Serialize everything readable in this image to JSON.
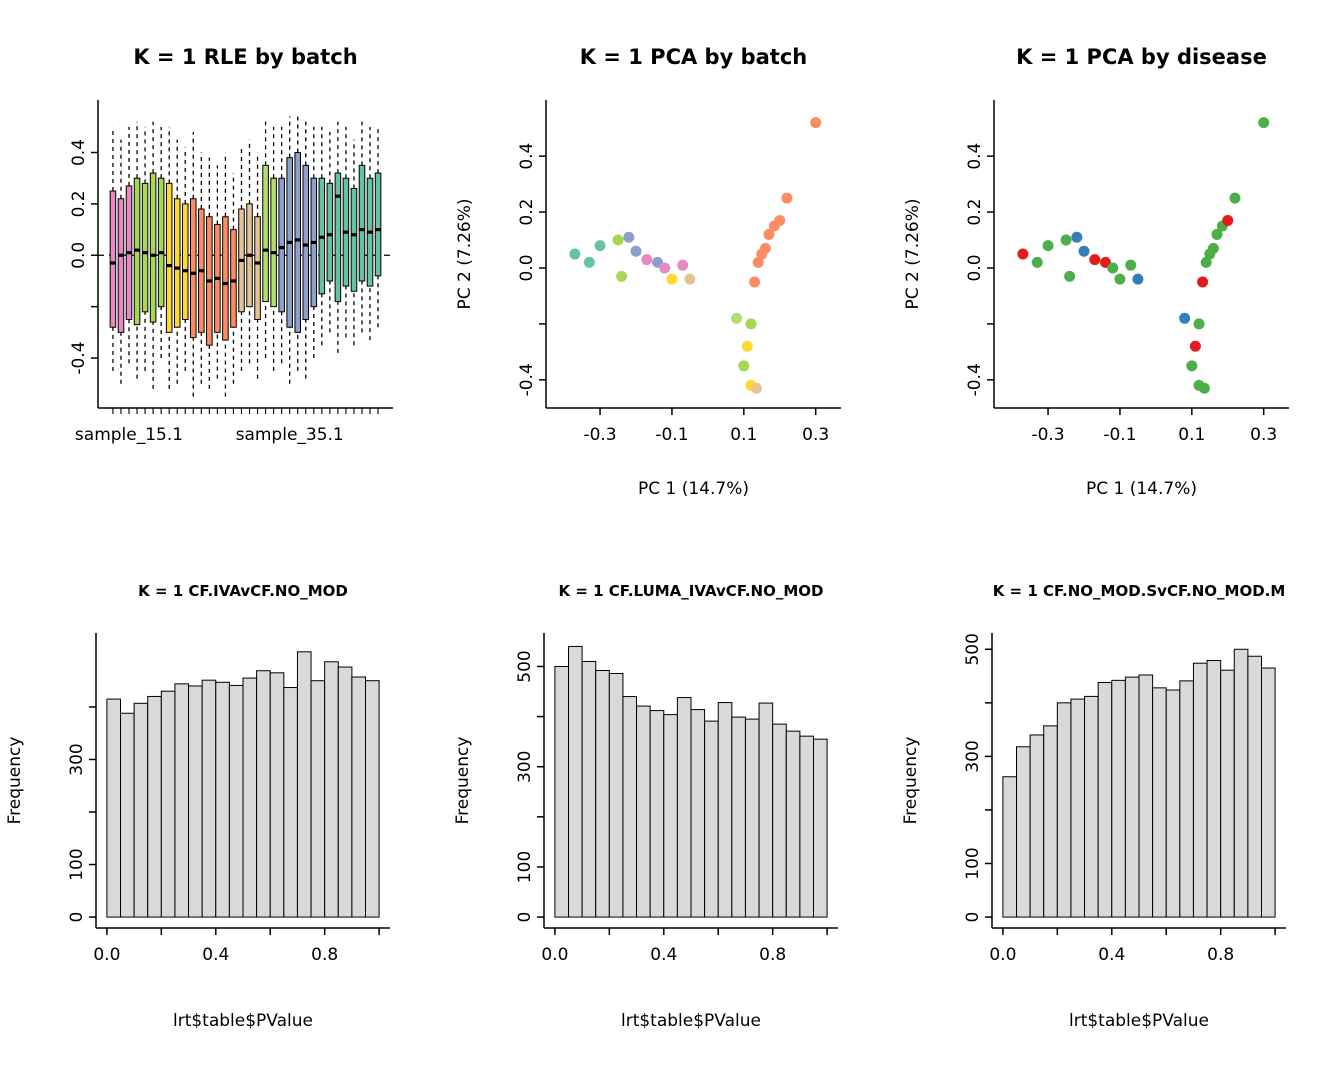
{
  "figure": {
    "background": "#ffffff",
    "axis_color": "#000000"
  },
  "chart_data": [
    {
      "id": "rle-by-batch",
      "type": "rle_boxplot",
      "title": "K = 1 RLE by batch",
      "ylim": [
        -0.55,
        0.56
      ],
      "yticks": [
        {
          "v": -0.4,
          "label": "-0.4"
        },
        {
          "v": -0.2,
          "label": ""
        },
        {
          "v": 0.0,
          "label": "0.0"
        },
        {
          "v": 0.2,
          "label": "0.2"
        },
        {
          "v": 0.4,
          "label": "0.4"
        }
      ],
      "zero_line": true,
      "x_labels": [
        {
          "text": "sample_15.1",
          "at": 3
        },
        {
          "text": "sample_35.1",
          "at": 23
        }
      ],
      "boxes": [
        {
          "lo": -0.45,
          "q1": -0.28,
          "med": -0.03,
          "q3": 0.25,
          "hi": 0.5,
          "color": "#E78AC3"
        },
        {
          "lo": -0.5,
          "q1": -0.3,
          "med": 0.0,
          "q3": 0.22,
          "hi": 0.45,
          "color": "#E78AC3"
        },
        {
          "lo": -0.42,
          "q1": -0.25,
          "med": 0.01,
          "q3": 0.27,
          "hi": 0.5,
          "color": "#E78AC3"
        },
        {
          "lo": -0.48,
          "q1": -0.27,
          "med": 0.02,
          "q3": 0.3,
          "hi": 0.52,
          "color": "#A6D854"
        },
        {
          "lo": -0.45,
          "q1": -0.22,
          "med": 0.01,
          "q3": 0.28,
          "hi": 0.5,
          "color": "#A6D854"
        },
        {
          "lo": -0.52,
          "q1": -0.26,
          "med": 0.0,
          "q3": 0.32,
          "hi": 0.52,
          "color": "#A6D854"
        },
        {
          "lo": -0.4,
          "q1": -0.2,
          "med": 0.01,
          "q3": 0.3,
          "hi": 0.5,
          "color": "#A6D854"
        },
        {
          "lo": -0.52,
          "q1": -0.3,
          "med": -0.04,
          "q3": 0.28,
          "hi": 0.5,
          "color": "#FFD92F"
        },
        {
          "lo": -0.5,
          "q1": -0.28,
          "med": -0.05,
          "q3": 0.22,
          "hi": 0.45,
          "color": "#FFD92F"
        },
        {
          "lo": -0.45,
          "q1": -0.25,
          "med": -0.06,
          "q3": 0.2,
          "hi": 0.42,
          "color": "#FFD92F"
        },
        {
          "lo": -0.55,
          "q1": -0.32,
          "med": -0.07,
          "q3": 0.22,
          "hi": 0.48,
          "color": "#FC8D62"
        },
        {
          "lo": -0.5,
          "q1": -0.3,
          "med": -0.06,
          "q3": 0.18,
          "hi": 0.4,
          "color": "#FC8D62"
        },
        {
          "lo": -0.52,
          "q1": -0.35,
          "med": -0.1,
          "q3": 0.15,
          "hi": 0.38,
          "color": "#FC8D62"
        },
        {
          "lo": -0.48,
          "q1": -0.3,
          "med": -0.09,
          "q3": 0.12,
          "hi": 0.35,
          "color": "#FC8D62"
        },
        {
          "lo": -0.55,
          "q1": -0.33,
          "med": -0.11,
          "q3": 0.15,
          "hi": 0.4,
          "color": "#FC8D62"
        },
        {
          "lo": -0.5,
          "q1": -0.28,
          "med": -0.1,
          "q3": 0.1,
          "hi": 0.32,
          "color": "#FC8D62"
        },
        {
          "lo": -0.45,
          "q1": -0.22,
          "med": -0.02,
          "q3": 0.18,
          "hi": 0.42,
          "color": "#E5C494"
        },
        {
          "lo": -0.42,
          "q1": -0.2,
          "med": 0.0,
          "q3": 0.2,
          "hi": 0.45,
          "color": "#E5C494"
        },
        {
          "lo": -0.48,
          "q1": -0.25,
          "med": -0.03,
          "q3": 0.15,
          "hi": 0.4,
          "color": "#E5C494"
        },
        {
          "lo": -0.4,
          "q1": -0.18,
          "med": 0.02,
          "q3": 0.35,
          "hi": 0.52,
          "color": "#B3DE69"
        },
        {
          "lo": -0.45,
          "q1": -0.2,
          "med": 0.01,
          "q3": 0.3,
          "hi": 0.5,
          "color": "#B3DE69"
        },
        {
          "lo": -0.42,
          "q1": -0.22,
          "med": 0.03,
          "q3": 0.3,
          "hi": 0.5,
          "color": "#8DA0CB"
        },
        {
          "lo": -0.5,
          "q1": -0.28,
          "med": 0.05,
          "q3": 0.38,
          "hi": 0.54,
          "color": "#8DA0CB"
        },
        {
          "lo": -0.45,
          "q1": -0.3,
          "med": 0.06,
          "q3": 0.4,
          "hi": 0.54,
          "color": "#8DA0CB"
        },
        {
          "lo": -0.48,
          "q1": -0.25,
          "med": 0.04,
          "q3": 0.35,
          "hi": 0.52,
          "color": "#8DA0CB"
        },
        {
          "lo": -0.4,
          "q1": -0.2,
          "med": 0.05,
          "q3": 0.3,
          "hi": 0.5,
          "color": "#8DA0CB"
        },
        {
          "lo": -0.35,
          "q1": -0.15,
          "med": 0.07,
          "q3": 0.3,
          "hi": 0.5,
          "color": "#66C2A5"
        },
        {
          "lo": -0.3,
          "q1": -0.1,
          "med": 0.08,
          "q3": 0.28,
          "hi": 0.48,
          "color": "#66C2A5"
        },
        {
          "lo": -0.38,
          "q1": -0.18,
          "med": 0.23,
          "q3": 0.32,
          "hi": 0.52,
          "color": "#66C2A5"
        },
        {
          "lo": -0.32,
          "q1": -0.12,
          "med": 0.09,
          "q3": 0.3,
          "hi": 0.5,
          "color": "#66C2A5"
        },
        {
          "lo": -0.35,
          "q1": -0.14,
          "med": 0.08,
          "q3": 0.26,
          "hi": 0.45,
          "color": "#66C2A5"
        },
        {
          "lo": -0.3,
          "q1": -0.1,
          "med": 0.1,
          "q3": 0.35,
          "hi": 0.52,
          "color": "#66C2A5"
        },
        {
          "lo": -0.33,
          "q1": -0.12,
          "med": 0.09,
          "q3": 0.3,
          "hi": 0.5,
          "color": "#66C2A5"
        },
        {
          "lo": -0.28,
          "q1": -0.08,
          "med": 0.1,
          "q3": 0.32,
          "hi": 0.5,
          "color": "#66C2A5"
        }
      ]
    },
    {
      "id": "pca-by-batch",
      "type": "scatter",
      "title": "K = 1 PCA by batch",
      "xlabel": "PC 1 (14.7%)",
      "ylabel": "PC 2 (7.26%)",
      "xlim": [
        -0.42,
        0.34
      ],
      "ylim": [
        -0.46,
        0.56
      ],
      "xticks": [
        {
          "v": -0.3,
          "label": "-0.3"
        },
        {
          "v": -0.1,
          "label": "-0.1"
        },
        {
          "v": 0.1,
          "label": "0.1"
        },
        {
          "v": 0.3,
          "label": "0.3"
        }
      ],
      "yticks": [
        {
          "v": -0.4,
          "label": "-0.4"
        },
        {
          "v": -0.2,
          "label": ""
        },
        {
          "v": 0.0,
          "label": "0.0"
        },
        {
          "v": 0.2,
          "label": "0.2"
        },
        {
          "v": 0.4,
          "label": "0.4"
        }
      ],
      "points": [
        [
          -0.37,
          0.05,
          "#66C2A5"
        ],
        [
          -0.33,
          0.02,
          "#66C2A5"
        ],
        [
          -0.3,
          0.08,
          "#66C2A5"
        ],
        [
          -0.25,
          0.1,
          "#A6D854"
        ],
        [
          -0.22,
          0.11,
          "#8DA0CB"
        ],
        [
          -0.2,
          0.06,
          "#8DA0CB"
        ],
        [
          -0.24,
          -0.03,
          "#A6D854"
        ],
        [
          -0.17,
          0.03,
          "#E78AC3"
        ],
        [
          -0.14,
          0.02,
          "#8DA0CB"
        ],
        [
          -0.12,
          0.0,
          "#E78AC3"
        ],
        [
          -0.1,
          -0.04,
          "#FFD92F"
        ],
        [
          -0.07,
          0.01,
          "#E78AC3"
        ],
        [
          -0.05,
          -0.04,
          "#E5C494"
        ],
        [
          0.08,
          -0.18,
          "#B3DE69"
        ],
        [
          0.12,
          -0.2,
          "#A6D854"
        ],
        [
          0.11,
          -0.28,
          "#FFD92F"
        ],
        [
          0.1,
          -0.35,
          "#A6D854"
        ],
        [
          0.12,
          -0.42,
          "#FFD92F"
        ],
        [
          0.135,
          -0.43,
          "#E5C494"
        ],
        [
          0.13,
          -0.05,
          "#FC8D62"
        ],
        [
          0.14,
          0.02,
          "#FC8D62"
        ],
        [
          0.15,
          0.05,
          "#FC8D62"
        ],
        [
          0.16,
          0.07,
          "#FC8D62"
        ],
        [
          0.17,
          0.12,
          "#FC8D62"
        ],
        [
          0.185,
          0.15,
          "#FC8D62"
        ],
        [
          0.2,
          0.17,
          "#FC8D62"
        ],
        [
          0.22,
          0.25,
          "#FC8D62"
        ],
        [
          0.3,
          0.52,
          "#FC8D62"
        ]
      ]
    },
    {
      "id": "pca-by-disease",
      "type": "scatter",
      "title": "K = 1 PCA by disease",
      "xlabel": "PC 1 (14.7%)",
      "ylabel": "PC 2 (7.26%)",
      "xlim": [
        -0.42,
        0.34
      ],
      "ylim": [
        -0.46,
        0.56
      ],
      "xticks": [
        {
          "v": -0.3,
          "label": "-0.3"
        },
        {
          "v": -0.1,
          "label": "-0.1"
        },
        {
          "v": 0.1,
          "label": "0.1"
        },
        {
          "v": 0.3,
          "label": "0.3"
        }
      ],
      "yticks": [
        {
          "v": -0.4,
          "label": "-0.4"
        },
        {
          "v": -0.2,
          "label": ""
        },
        {
          "v": 0.0,
          "label": "0.0"
        },
        {
          "v": 0.2,
          "label": "0.2"
        },
        {
          "v": 0.4,
          "label": "0.4"
        }
      ],
      "points": [
        [
          -0.37,
          0.05,
          "#E41A1C"
        ],
        [
          -0.33,
          0.02,
          "#4DAF4A"
        ],
        [
          -0.3,
          0.08,
          "#4DAF4A"
        ],
        [
          -0.25,
          0.1,
          "#4DAF4A"
        ],
        [
          -0.22,
          0.11,
          "#377EB8"
        ],
        [
          -0.2,
          0.06,
          "#377EB8"
        ],
        [
          -0.24,
          -0.03,
          "#4DAF4A"
        ],
        [
          -0.17,
          0.03,
          "#E41A1C"
        ],
        [
          -0.14,
          0.02,
          "#E41A1C"
        ],
        [
          -0.12,
          0.0,
          "#4DAF4A"
        ],
        [
          -0.1,
          -0.04,
          "#4DAF4A"
        ],
        [
          -0.07,
          0.01,
          "#4DAF4A"
        ],
        [
          -0.05,
          -0.04,
          "#377EB8"
        ],
        [
          0.08,
          -0.18,
          "#377EB8"
        ],
        [
          0.12,
          -0.2,
          "#4DAF4A"
        ],
        [
          0.11,
          -0.28,
          "#E41A1C"
        ],
        [
          0.1,
          -0.35,
          "#4DAF4A"
        ],
        [
          0.12,
          -0.42,
          "#4DAF4A"
        ],
        [
          0.135,
          -0.43,
          "#4DAF4A"
        ],
        [
          0.13,
          -0.05,
          "#E41A1C"
        ],
        [
          0.14,
          0.02,
          "#4DAF4A"
        ],
        [
          0.15,
          0.05,
          "#4DAF4A"
        ],
        [
          0.16,
          0.07,
          "#4DAF4A"
        ],
        [
          0.17,
          0.12,
          "#4DAF4A"
        ],
        [
          0.185,
          0.15,
          "#4DAF4A"
        ],
        [
          0.2,
          0.17,
          "#E41A1C"
        ],
        [
          0.22,
          0.25,
          "#4DAF4A"
        ],
        [
          0.3,
          0.52,
          "#4DAF4A"
        ]
      ]
    },
    {
      "id": "hist-cf-iva",
      "type": "histogram",
      "title": "K = 1 CF.IVAvCF.NO_MOD",
      "xlabel": "lrt$table$PValue",
      "ylabel": "Frequency",
      "bin_start": 0,
      "bin_width": 0.05,
      "counts": [
        415,
        388,
        407,
        420,
        430,
        444,
        440,
        451,
        447,
        441,
        455,
        469,
        465,
        437,
        505,
        450,
        486,
        476,
        457,
        450
      ],
      "bar_fill": "#D9D9D9",
      "xlim": [
        0,
        1
      ],
      "ylim": [
        0,
        520
      ],
      "xticks": [
        {
          "v": 0.0,
          "label": "0.0"
        },
        {
          "v": 0.2,
          "label": ""
        },
        {
          "v": 0.4,
          "label": "0.4"
        },
        {
          "v": 0.6,
          "label": ""
        },
        {
          "v": 0.8,
          "label": "0.8"
        },
        {
          "v": 1.0,
          "label": ""
        }
      ],
      "yticks": [
        {
          "v": 0,
          "label": "0"
        },
        {
          "v": 100,
          "label": "100"
        },
        {
          "v": 200,
          "label": ""
        },
        {
          "v": 300,
          "label": "300"
        },
        {
          "v": 400,
          "label": ""
        }
      ]
    },
    {
      "id": "hist-cf-luma-iva",
      "type": "histogram",
      "title": "K = 1 CF.LUMA_IVAvCF.NO_MOD",
      "xlabel": "lrt$table$PValue",
      "ylabel": "Frequency",
      "bin_start": 0,
      "bin_width": 0.05,
      "counts": [
        500,
        540,
        510,
        492,
        486,
        440,
        421,
        412,
        404,
        438,
        414,
        391,
        428,
        399,
        395,
        427,
        385,
        371,
        361,
        355
      ],
      "bar_fill": "#D9D9D9",
      "xlim": [
        0,
        1
      ],
      "ylim": [
        0,
        545
      ],
      "xticks": [
        {
          "v": 0.0,
          "label": "0.0"
        },
        {
          "v": 0.2,
          "label": ""
        },
        {
          "v": 0.4,
          "label": "0.4"
        },
        {
          "v": 0.6,
          "label": ""
        },
        {
          "v": 0.8,
          "label": "0.8"
        },
        {
          "v": 1.0,
          "label": ""
        }
      ],
      "yticks": [
        {
          "v": 0,
          "label": "0"
        },
        {
          "v": 100,
          "label": "100"
        },
        {
          "v": 200,
          "label": ""
        },
        {
          "v": 300,
          "label": "300"
        },
        {
          "v": 400,
          "label": ""
        },
        {
          "v": 500,
          "label": "500"
        }
      ]
    },
    {
      "id": "hist-cf-no-mod",
      "type": "histogram",
      "title": "K = 1 CF.NO_MOD.SvCF.NO_MOD.M",
      "xlabel": "lrt$table$PValue",
      "ylabel": "Frequency",
      "bin_start": 0,
      "bin_width": 0.05,
      "counts": [
        262,
        318,
        340,
        357,
        400,
        407,
        412,
        438,
        442,
        448,
        452,
        428,
        424,
        441,
        474,
        479,
        461,
        500,
        487,
        465
      ],
      "bar_fill": "#D9D9D9",
      "xlim": [
        0,
        1
      ],
      "ylim": [
        0,
        510
      ],
      "xticks": [
        {
          "v": 0.0,
          "label": "0.0"
        },
        {
          "v": 0.2,
          "label": ""
        },
        {
          "v": 0.4,
          "label": "0.4"
        },
        {
          "v": 0.6,
          "label": ""
        },
        {
          "v": 0.8,
          "label": "0.8"
        },
        {
          "v": 1.0,
          "label": ""
        }
      ],
      "yticks": [
        {
          "v": 0,
          "label": "0"
        },
        {
          "v": 100,
          "label": "100"
        },
        {
          "v": 200,
          "label": ""
        },
        {
          "v": 300,
          "label": "300"
        },
        {
          "v": 400,
          "label": ""
        },
        {
          "v": 500,
          "label": "500"
        }
      ]
    }
  ]
}
